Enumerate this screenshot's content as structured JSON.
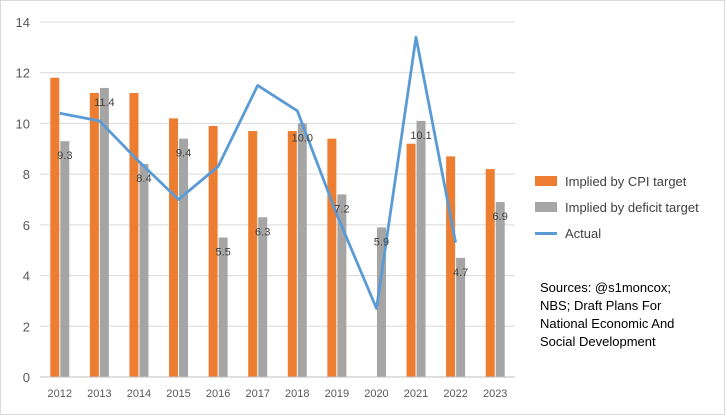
{
  "chart_data": {
    "type": "bar",
    "title": "",
    "xlabel": "",
    "ylabel": "",
    "ylim": [
      0,
      14
    ],
    "yticks": [
      0,
      2,
      4,
      6,
      8,
      10,
      12,
      14
    ],
    "categories": [
      "2012",
      "2013",
      "2014",
      "2015",
      "2016",
      "2017",
      "2018",
      "2019",
      "2020",
      "2021",
      "2022",
      "2023"
    ],
    "series": [
      {
        "name": "Implied by CPI target",
        "type": "bar",
        "color": "#ed7d31",
        "values": [
          11.8,
          11.2,
          11.2,
          10.2,
          9.9,
          9.7,
          9.7,
          9.4,
          null,
          9.2,
          8.7,
          8.2
        ]
      },
      {
        "name": "Implied by deficit target",
        "type": "bar",
        "color": "#a5a5a5",
        "values": [
          9.3,
          11.4,
          8.4,
          9.4,
          5.5,
          6.3,
          10.0,
          7.2,
          5.9,
          10.1,
          4.7,
          6.9
        ],
        "labels": [
          "9.3",
          "11.4",
          "8.4",
          "9.4",
          "5.5",
          "6.3",
          "10.0",
          "7.2",
          "5.9",
          "10.1",
          "4.7",
          "6.9"
        ]
      },
      {
        "name": "Actual",
        "type": "line",
        "color": "#5b9bd5",
        "values": [
          10.4,
          10.1,
          8.5,
          7.0,
          8.3,
          11.5,
          10.5,
          6.4,
          2.7,
          13.4,
          5.3,
          null
        ]
      }
    ],
    "grid": true,
    "legend": "right"
  },
  "sources": {
    "lines": [
      "Sources: @s1moncox;",
      "NBS; Draft Plans For",
      "National Economic And",
      "Social Development"
    ]
  }
}
